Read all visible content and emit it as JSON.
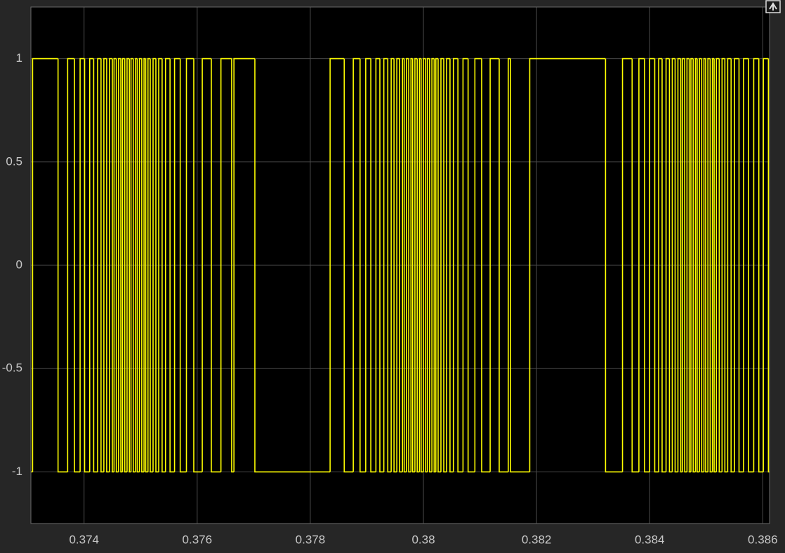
{
  "chart_data": {
    "type": "step",
    "x": [
      0.37306,
      0.37309,
      0.37354,
      0.37371,
      0.37383,
      0.37393,
      0.37401,
      0.3741,
      0.37417,
      0.37424,
      0.3743,
      0.37435,
      0.3744,
      0.37445,
      0.3745,
      0.37453,
      0.37457,
      0.37461,
      0.37465,
      0.37468,
      0.37472,
      0.37476,
      0.3748,
      0.37483,
      0.37487,
      0.37491,
      0.37494,
      0.37498,
      0.37502,
      0.37506,
      0.37509,
      0.37513,
      0.37517,
      0.37522,
      0.37527,
      0.37532,
      0.37538,
      0.37544,
      0.37552,
      0.3756,
      0.3757,
      0.37581,
      0.37594,
      0.37609,
      0.37625,
      0.37642,
      0.37661,
      0.37665,
      0.37702,
      0.37835,
      0.3786,
      0.37876,
      0.37888,
      0.37898,
      0.37907,
      0.37916,
      0.37923,
      0.3793,
      0.37937,
      0.37943,
      0.37948,
      0.37953,
      0.37958,
      0.37963,
      0.37966,
      0.3797,
      0.37974,
      0.37978,
      0.37981,
      0.37985,
      0.37989,
      0.37993,
      0.37996,
      0.38,
      0.38004,
      0.38007,
      0.38011,
      0.38015,
      0.38019,
      0.38022,
      0.38026,
      0.38031,
      0.38036,
      0.38041,
      0.38047,
      0.38053,
      0.38061,
      0.3807,
      0.38079,
      0.38091,
      0.38103,
      0.38118,
      0.38134,
      0.3815,
      0.38154,
      0.38188,
      0.38322,
      0.38352,
      0.38369,
      0.38381,
      0.38391,
      0.384,
      0.38409,
      0.38416,
      0.38422,
      0.38429,
      0.38435,
      0.3844,
      0.38445,
      0.3845,
      0.38455,
      0.38458,
      0.38462,
      0.38466,
      0.3847,
      0.38473,
      0.38477,
      0.38481,
      0.38484,
      0.38488,
      0.38492,
      0.38496,
      0.38499,
      0.38503,
      0.38507,
      0.38511,
      0.38514,
      0.38518,
      0.38523,
      0.38528,
      0.38533,
      0.38538,
      0.38544,
      0.3855,
      0.38558,
      0.38566,
      0.38575,
      0.38584,
      0.38593,
      0.38601,
      0.3861
    ],
    "values": [
      -1,
      1,
      -1,
      1,
      -1,
      1,
      -1,
      1,
      -1,
      1,
      -1,
      1,
      -1,
      1,
      -1,
      1,
      -1,
      1,
      -1,
      1,
      -1,
      1,
      -1,
      1,
      -1,
      1,
      -1,
      1,
      -1,
      1,
      -1,
      1,
      -1,
      1,
      -1,
      1,
      -1,
      1,
      -1,
      1,
      -1,
      1,
      -1,
      1,
      -1,
      1,
      -1,
      1,
      -1,
      1,
      -1,
      1,
      -1,
      1,
      -1,
      1,
      -1,
      1,
      -1,
      1,
      -1,
      1,
      -1,
      1,
      -1,
      1,
      -1,
      1,
      -1,
      1,
      -1,
      1,
      -1,
      1,
      -1,
      1,
      -1,
      1,
      -1,
      1,
      -1,
      1,
      -1,
      1,
      -1,
      1,
      -1,
      1,
      -1,
      1,
      -1,
      1,
      -1,
      1,
      -1,
      1,
      -1,
      1,
      -1,
      1,
      -1,
      1,
      -1,
      1,
      -1,
      1,
      -1,
      1,
      -1,
      1,
      -1,
      1,
      -1,
      1,
      -1,
      1,
      -1,
      1,
      -1,
      1,
      -1,
      1,
      -1,
      1,
      -1,
      1,
      -1,
      1,
      -1,
      1,
      -1,
      1,
      -1,
      1,
      -1,
      1,
      -1,
      1,
      -1,
      1,
      -1
    ],
    "color": "#ffff00",
    "xlim": [
      0.37306,
      0.38612
    ],
    "ylim": [
      -1.25,
      1.25
    ],
    "xticks": [
      0.374,
      0.376,
      0.378,
      0.38,
      0.382,
      0.384,
      0.386
    ],
    "yticks": [
      -1,
      -0.5,
      0,
      0.5,
      1
    ],
    "grid": true
  }
}
